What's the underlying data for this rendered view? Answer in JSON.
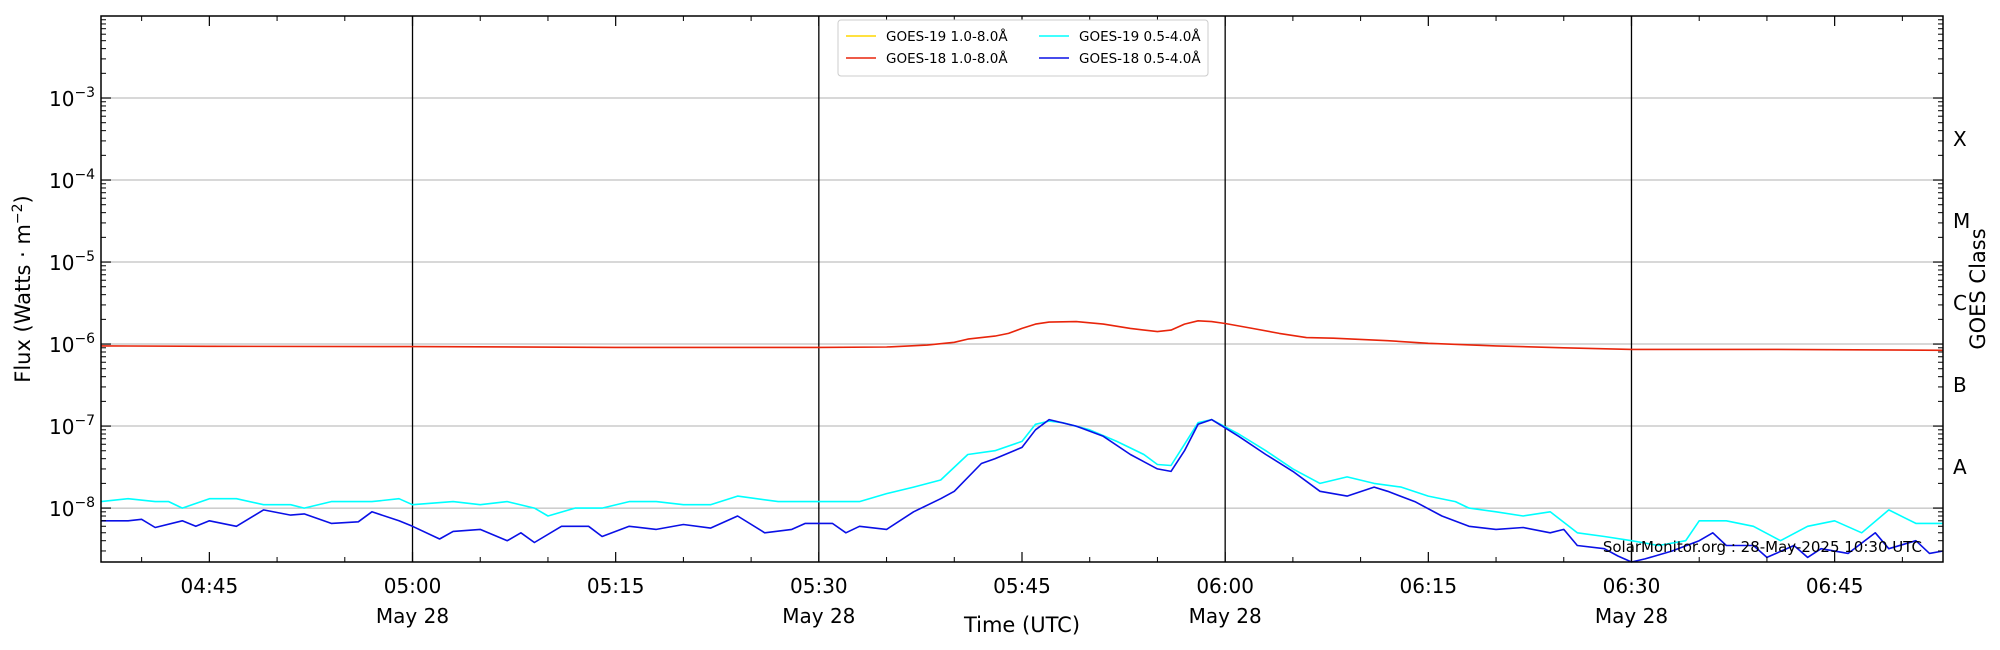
{
  "chart_data": {
    "type": "line",
    "xlabel": "Time (UTC)",
    "ylabel": "Flux (Watts · m",
    "ylabel_exponent": "−2",
    "ylabel_close": ")",
    "y2label": "GOES Class",
    "yscale": "log",
    "ylim": [
      2.2e-09,
      0.01
    ],
    "xlim_minutes": [
      "04:37",
      "06:53"
    ],
    "grid": "horizontal",
    "legend_position": "top-center",
    "date_label": "May 28",
    "x_ticks": [
      {
        "time": "04:45",
        "label": "04:45",
        "major": false
      },
      {
        "time": "05:00",
        "label": "05:00",
        "major": true
      },
      {
        "time": "05:15",
        "label": "05:15",
        "major": false
      },
      {
        "time": "05:30",
        "label": "05:30",
        "major": true
      },
      {
        "time": "05:45",
        "label": "05:45",
        "major": false
      },
      {
        "time": "06:00",
        "label": "06:00",
        "major": true
      },
      {
        "time": "06:15",
        "label": "06:15",
        "major": false
      },
      {
        "time": "06:30",
        "label": "06:30",
        "major": true
      },
      {
        "time": "06:45",
        "label": "06:45",
        "major": false
      }
    ],
    "y_ticks": [
      {
        "value": 1e-08,
        "mantissa": "10",
        "exp": "−8"
      },
      {
        "value": 1e-07,
        "mantissa": "10",
        "exp": "−7"
      },
      {
        "value": 1e-06,
        "mantissa": "10",
        "exp": "−6"
      },
      {
        "value": 1e-05,
        "mantissa": "10",
        "exp": "−5"
      },
      {
        "value": 0.0001,
        "mantissa": "10",
        "exp": "−4"
      },
      {
        "value": 0.001,
        "mantissa": "10",
        "exp": "−3"
      }
    ],
    "goes_classes": [
      {
        "label": "A",
        "value": 3.16e-08
      },
      {
        "label": "B",
        "value": 3.16e-07
      },
      {
        "label": "C",
        "value": 3.16e-06
      },
      {
        "label": "M",
        "value": 3.16e-05
      },
      {
        "label": "X",
        "value": 0.000316
      }
    ],
    "series": [
      {
        "name": "GOES-19 1.0-8.0Å",
        "color": "#FFD700",
        "points": []
      },
      {
        "name": "GOES-19 0.5-4.0Å",
        "color": "#00FFFF",
        "points": [
          [
            "04:37",
            1.2e-08
          ],
          [
            "04:39",
            1.3e-08
          ],
          [
            "04:41",
            1.2e-08
          ],
          [
            "04:42",
            1.2e-08
          ],
          [
            "04:43",
            1e-08
          ],
          [
            "04:45",
            1.3e-08
          ],
          [
            "04:47",
            1.3e-08
          ],
          [
            "04:49",
            1.1e-08
          ],
          [
            "04:51",
            1.1e-08
          ],
          [
            "04:52",
            1e-08
          ],
          [
            "04:54",
            1.2e-08
          ],
          [
            "04:57",
            1.2e-08
          ],
          [
            "04:59",
            1.3e-08
          ],
          [
            "05:00",
            1.1e-08
          ],
          [
            "05:03",
            1.2e-08
          ],
          [
            "05:05",
            1.1e-08
          ],
          [
            "05:07",
            1.2e-08
          ],
          [
            "05:09",
            1e-08
          ],
          [
            "05:10",
            8e-09
          ],
          [
            "05:12",
            1e-08
          ],
          [
            "05:14",
            1e-08
          ],
          [
            "05:16",
            1.2e-08
          ],
          [
            "05:18",
            1.2e-08
          ],
          [
            "05:20",
            1.1e-08
          ],
          [
            "05:22",
            1.1e-08
          ],
          [
            "05:24",
            1.4e-08
          ],
          [
            "05:27",
            1.2e-08
          ],
          [
            "05:29",
            1.2e-08
          ],
          [
            "05:31",
            1.2e-08
          ],
          [
            "05:33",
            1.2e-08
          ],
          [
            "05:35",
            1.5e-08
          ],
          [
            "05:37",
            1.8e-08
          ],
          [
            "05:39",
            2.2e-08
          ],
          [
            "05:41",
            4.5e-08
          ],
          [
            "05:43",
            5e-08
          ],
          [
            "05:45",
            6.5e-08
          ],
          [
            "05:46",
            1.05e-07
          ],
          [
            "05:47",
            1.15e-07
          ],
          [
            "05:48",
            1.1e-07
          ],
          [
            "05:50",
            9e-08
          ],
          [
            "05:52",
            6.5e-08
          ],
          [
            "05:54",
            4.5e-08
          ],
          [
            "05:55",
            3.4e-08
          ],
          [
            "05:56",
            3.3e-08
          ],
          [
            "05:57",
            6e-08
          ],
          [
            "05:58",
            1.1e-07
          ],
          [
            "05:59",
            1.2e-07
          ],
          [
            "06:01",
            8e-08
          ],
          [
            "06:03",
            5e-08
          ],
          [
            "06:05",
            3e-08
          ],
          [
            "06:07",
            2e-08
          ],
          [
            "06:09",
            2.4e-08
          ],
          [
            "06:11",
            2e-08
          ],
          [
            "06:13",
            1.8e-08
          ],
          [
            "06:15",
            1.4e-08
          ],
          [
            "06:17",
            1.2e-08
          ],
          [
            "06:18",
            1e-08
          ],
          [
            "06:20",
            9e-09
          ],
          [
            "06:22",
            8e-09
          ],
          [
            "06:24",
            9e-09
          ],
          [
            "06:26",
            5e-09
          ],
          [
            "06:28",
            4.5e-09
          ],
          [
            "06:30",
            4e-09
          ],
          [
            "06:32",
            3.5e-09
          ],
          [
            "06:34",
            4e-09
          ],
          [
            "06:35",
            7e-09
          ],
          [
            "06:37",
            7e-09
          ],
          [
            "06:39",
            6e-09
          ],
          [
            "06:41",
            4e-09
          ],
          [
            "06:43",
            6e-09
          ],
          [
            "06:45",
            7e-09
          ],
          [
            "06:47",
            5e-09
          ],
          [
            "06:49",
            9.5e-09
          ],
          [
            "06:51",
            6.5e-09
          ],
          [
            "06:53",
            6.5e-09
          ]
        ]
      },
      {
        "name": "GOES-18 1.0-8.0Å",
        "color": "#E8250B",
        "points": [
          [
            "04:37",
            9.5e-07
          ],
          [
            "04:45",
            9.4e-07
          ],
          [
            "05:00",
            9.3e-07
          ],
          [
            "05:15",
            9.1e-07
          ],
          [
            "05:30",
            9.1e-07
          ],
          [
            "05:35",
            9.2e-07
          ],
          [
            "05:38",
            9.7e-07
          ],
          [
            "05:40",
            1.05e-06
          ],
          [
            "05:41",
            1.15e-06
          ],
          [
            "05:43",
            1.25e-06
          ],
          [
            "05:44",
            1.35e-06
          ],
          [
            "05:45",
            1.55e-06
          ],
          [
            "05:46",
            1.75e-06
          ],
          [
            "05:47",
            1.85e-06
          ],
          [
            "05:49",
            1.88e-06
          ],
          [
            "05:51",
            1.75e-06
          ],
          [
            "05:53",
            1.55e-06
          ],
          [
            "05:55",
            1.42e-06
          ],
          [
            "05:56",
            1.48e-06
          ],
          [
            "05:57",
            1.75e-06
          ],
          [
            "05:58",
            1.92e-06
          ],
          [
            "05:59",
            1.88e-06
          ],
          [
            "06:00",
            1.78e-06
          ],
          [
            "06:02",
            1.55e-06
          ],
          [
            "06:04",
            1.35e-06
          ],
          [
            "06:06",
            1.2e-06
          ],
          [
            "06:08",
            1.18e-06
          ],
          [
            "06:12",
            1.1e-06
          ],
          [
            "06:15",
            1.02e-06
          ],
          [
            "06:20",
            9.5e-07
          ],
          [
            "06:25",
            9e-07
          ],
          [
            "06:30",
            8.6e-07
          ],
          [
            "06:40",
            8.6e-07
          ],
          [
            "06:53",
            8.4e-07
          ]
        ]
      },
      {
        "name": "GOES-18 0.5-4.0Å",
        "color": "#0A10E6",
        "points": [
          [
            "04:37",
            7e-09
          ],
          [
            "04:39",
            7e-09
          ],
          [
            "04:40",
            7.3e-09
          ],
          [
            "04:41",
            5.8e-09
          ],
          [
            "04:43",
            7e-09
          ],
          [
            "04:44",
            6e-09
          ],
          [
            "04:45",
            7e-09
          ],
          [
            "04:47",
            6e-09
          ],
          [
            "04:49",
            9.5e-09
          ],
          [
            "04:51",
            8.2e-09
          ],
          [
            "04:52",
            8.5e-09
          ],
          [
            "04:54",
            6.5e-09
          ],
          [
            "04:56",
            6.8e-09
          ],
          [
            "04:57",
            9e-09
          ],
          [
            "04:59",
            7e-09
          ],
          [
            "05:00",
            6e-09
          ],
          [
            "05:02",
            4.2e-09
          ],
          [
            "05:03",
            5.2e-09
          ],
          [
            "05:05",
            5.5e-09
          ],
          [
            "05:07",
            4e-09
          ],
          [
            "05:08",
            5e-09
          ],
          [
            "05:09",
            3.8e-09
          ],
          [
            "05:11",
            6e-09
          ],
          [
            "05:13",
            6e-09
          ],
          [
            "05:14",
            4.5e-09
          ],
          [
            "05:16",
            6e-09
          ],
          [
            "05:18",
            5.5e-09
          ],
          [
            "05:20",
            6.3e-09
          ],
          [
            "05:22",
            5.7e-09
          ],
          [
            "05:24",
            8e-09
          ],
          [
            "05:26",
            5e-09
          ],
          [
            "05:28",
            5.5e-09
          ],
          [
            "05:29",
            6.5e-09
          ],
          [
            "05:31",
            6.5e-09
          ],
          [
            "05:32",
            5e-09
          ],
          [
            "05:33",
            6e-09
          ],
          [
            "05:35",
            5.5e-09
          ],
          [
            "05:37",
            9e-09
          ],
          [
            "05:39",
            1.3e-08
          ],
          [
            "05:40",
            1.6e-08
          ],
          [
            "05:42",
            3.5e-08
          ],
          [
            "05:43",
            4e-08
          ],
          [
            "05:45",
            5.5e-08
          ],
          [
            "05:46",
            9e-08
          ],
          [
            "05:47",
            1.2e-07
          ],
          [
            "05:49",
            1e-07
          ],
          [
            "05:51",
            7.5e-08
          ],
          [
            "05:53",
            4.5e-08
          ],
          [
            "05:55",
            3e-08
          ],
          [
            "05:56",
            2.8e-08
          ],
          [
            "05:57",
            5e-08
          ],
          [
            "05:58",
            1.05e-07
          ],
          [
            "05:59",
            1.2e-07
          ],
          [
            "06:01",
            7.5e-08
          ],
          [
            "06:03",
            4.5e-08
          ],
          [
            "06:05",
            2.8e-08
          ],
          [
            "06:07",
            1.6e-08
          ],
          [
            "06:09",
            1.4e-08
          ],
          [
            "06:11",
            1.8e-08
          ],
          [
            "06:12",
            1.6e-08
          ],
          [
            "06:14",
            1.2e-08
          ],
          [
            "06:16",
            8e-09
          ],
          [
            "06:18",
            6e-09
          ],
          [
            "06:20",
            5.5e-09
          ],
          [
            "06:22",
            5.8e-09
          ],
          [
            "06:24",
            5e-09
          ],
          [
            "06:25",
            5.5e-09
          ],
          [
            "06:26",
            3.5e-09
          ],
          [
            "06:28",
            3.2e-09
          ],
          [
            "06:29",
            2.6e-09
          ],
          [
            "06:30",
            2.2e-09
          ],
          [
            "06:31",
            2.4e-09
          ],
          [
            "06:33",
            3e-09
          ],
          [
            "06:35",
            4e-09
          ],
          [
            "06:36",
            5e-09
          ],
          [
            "06:37",
            3.5e-09
          ],
          [
            "06:39",
            3.5e-09
          ],
          [
            "06:40",
            2.5e-09
          ],
          [
            "06:42",
            3.5e-09
          ],
          [
            "06:43",
            2.5e-09
          ],
          [
            "06:44",
            3.2e-09
          ],
          [
            "06:46",
            2.8e-09
          ],
          [
            "06:48",
            5e-09
          ],
          [
            "06:49",
            3.2e-09
          ],
          [
            "06:51",
            4e-09
          ],
          [
            "06:52",
            2.8e-09
          ],
          [
            "06:53",
            3e-09
          ]
        ]
      }
    ],
    "legend_order": [
      0,
      2,
      1,
      3
    ],
    "footer": "SolarMonitor.org : 28-May-2025 10:30 UTC"
  }
}
